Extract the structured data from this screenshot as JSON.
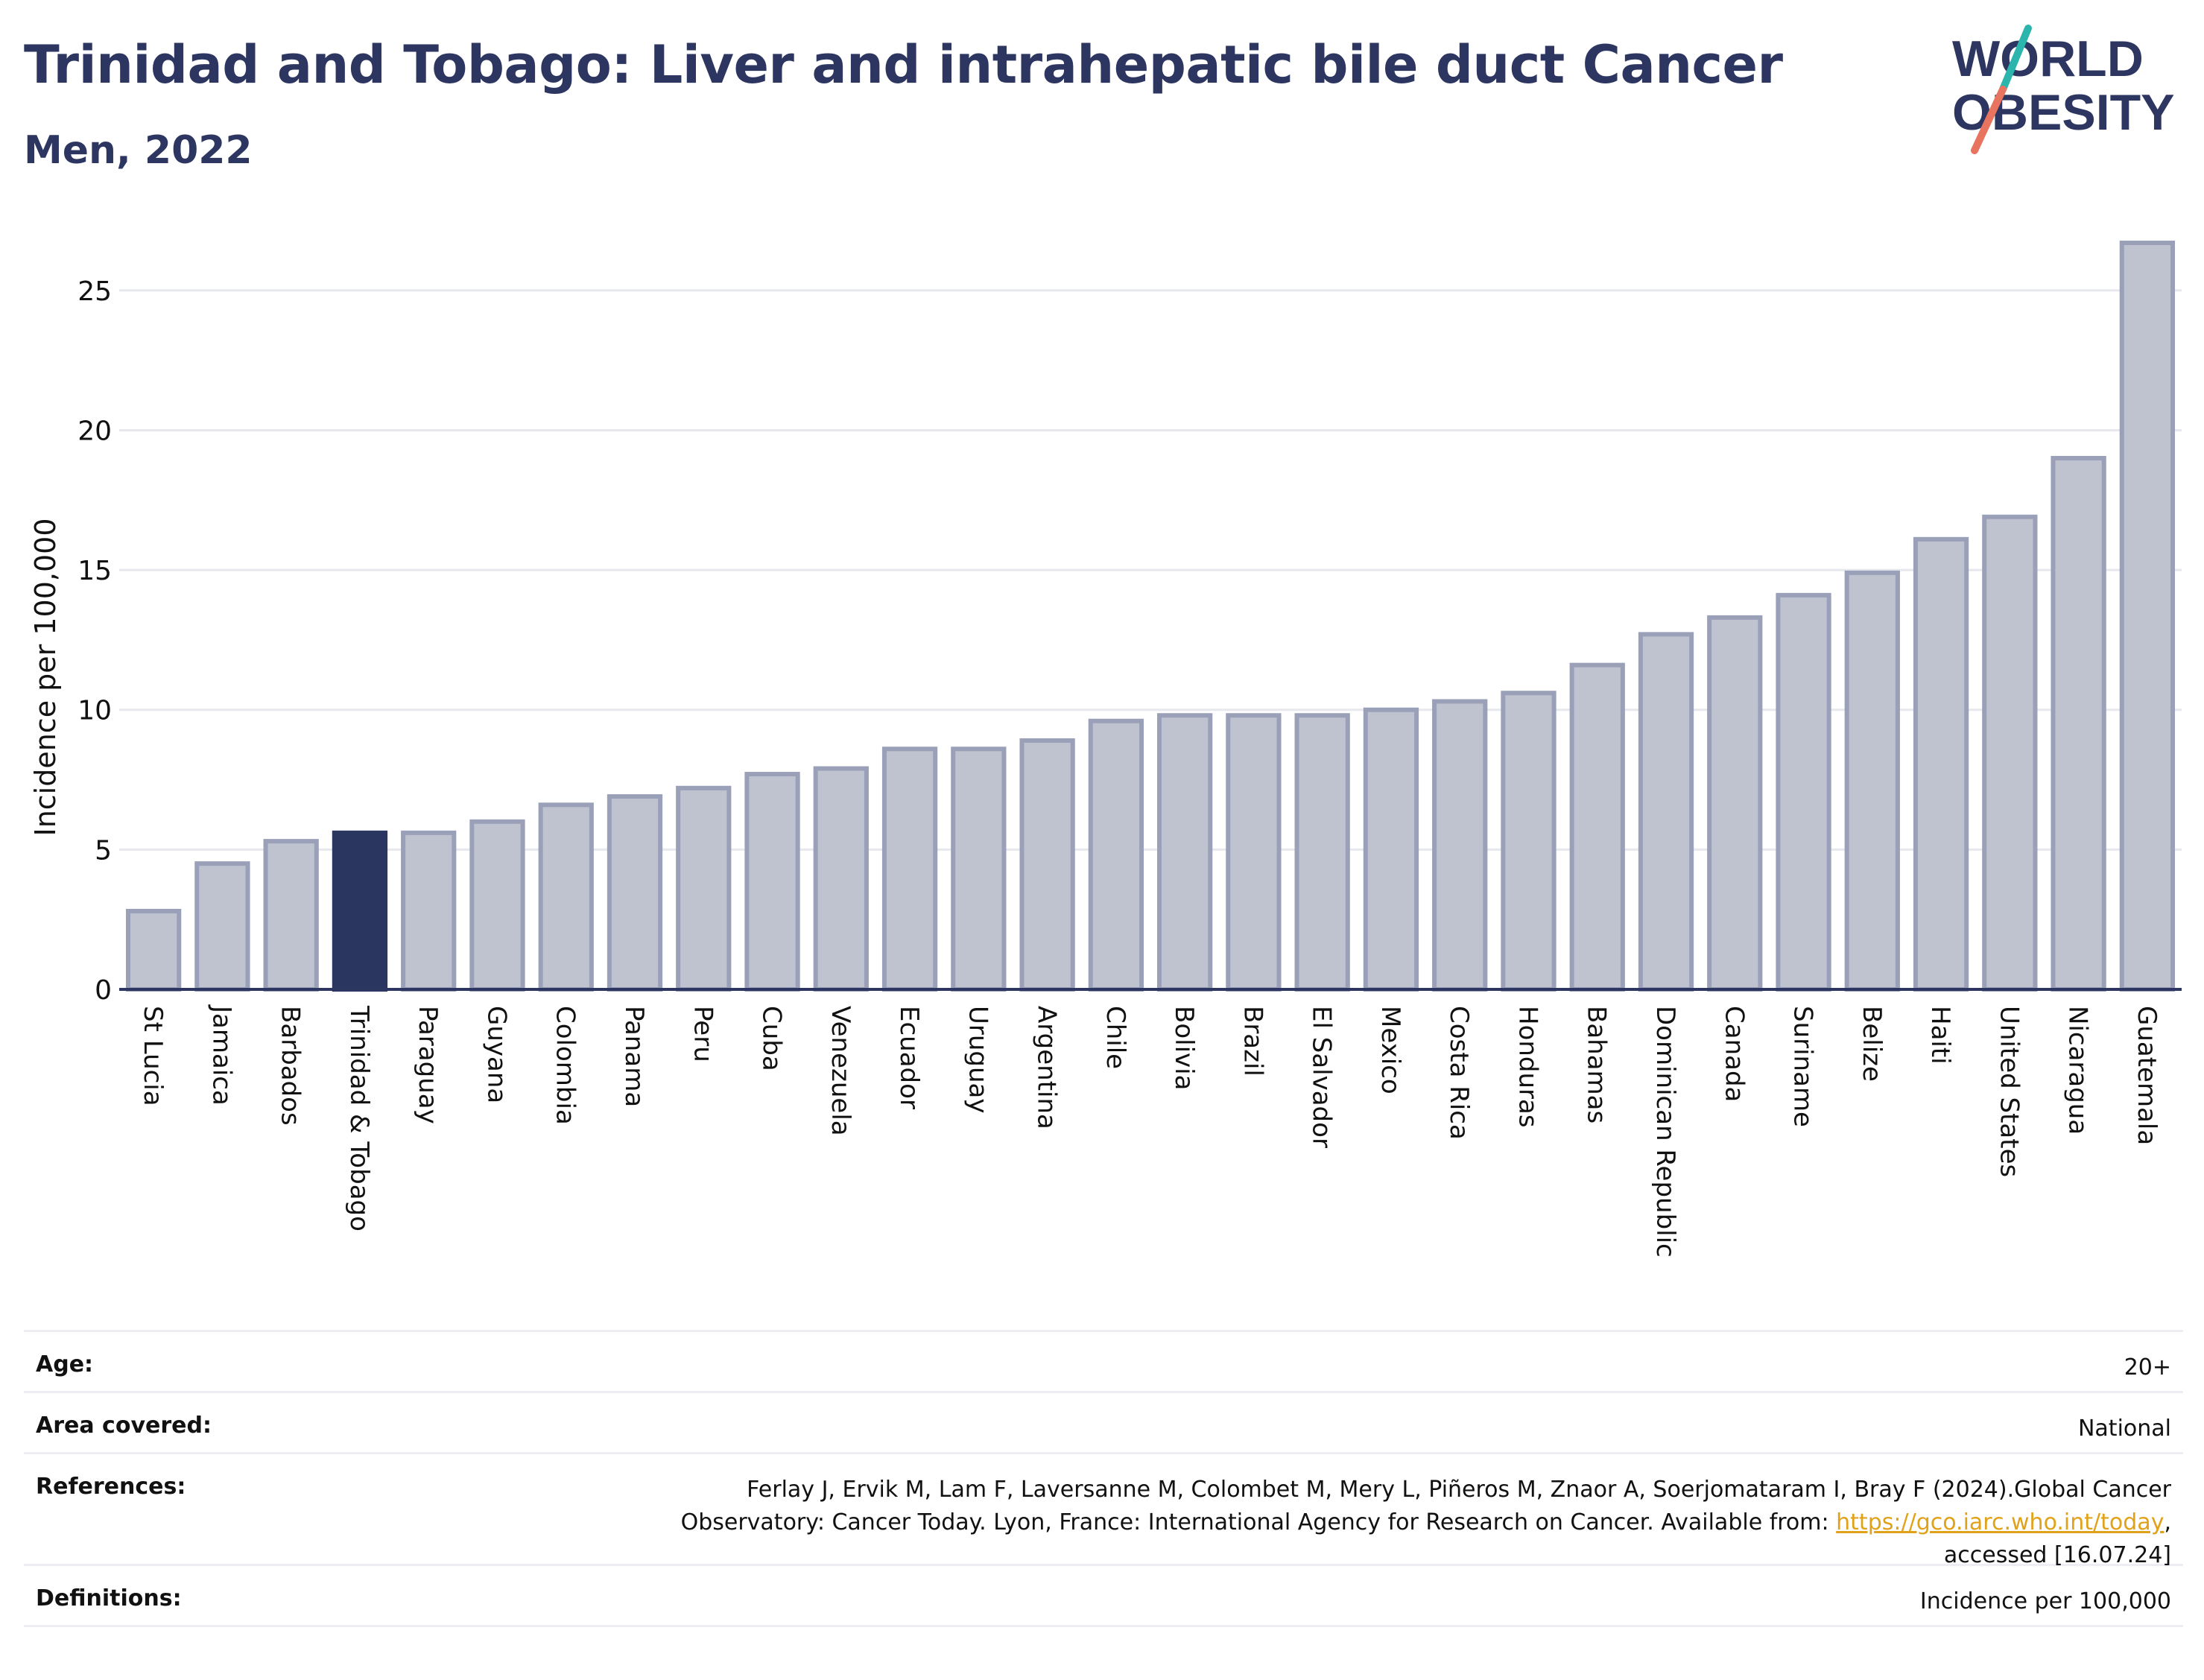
{
  "title": "Trinidad and Tobago: Liver and intrahepatic bile duct Cancer",
  "subtitle": "Men, 2022",
  "logo": {
    "line1": "WORLD",
    "line2": "OBESITY",
    "colors": {
      "text": "#2d3660",
      "slash_top": "#2bb5ad",
      "slash_bottom": "#e8735f"
    }
  },
  "colors": {
    "bar_default": "#bfc2cf",
    "bar_stroke": "#9aa0b8",
    "bar_highlight": "#2a3560",
    "grid": "#e6e8ee",
    "axis": "#2d3660"
  },
  "chart_data": {
    "type": "bar",
    "ylabel": "Incidence per 100,000",
    "xlabel": "",
    "ylim": [
      0,
      27
    ],
    "yticks": [
      0,
      5,
      10,
      15,
      20,
      25
    ],
    "grid": true,
    "highlight": "Trinidad & Tobago",
    "categories": [
      "St Lucia",
      "Jamaica",
      "Barbados",
      "Trinidad & Tobago",
      "Paraguay",
      "Guyana",
      "Colombia",
      "Panama",
      "Peru",
      "Cuba",
      "Venezuela",
      "Ecuador",
      "Uruguay",
      "Argentina",
      "Chile",
      "Bolivia",
      "Brazil",
      "El Salvador",
      "Mexico",
      "Costa Rica",
      "Honduras",
      "Bahamas",
      "Dominican Republic",
      "Canada",
      "Suriname",
      "Belize",
      "Haiti",
      "United States",
      "Nicaragua",
      "Guatemala"
    ],
    "values": [
      2.8,
      4.5,
      5.3,
      5.6,
      5.6,
      6.0,
      6.6,
      6.9,
      7.2,
      7.7,
      7.9,
      8.6,
      8.6,
      8.9,
      9.6,
      9.8,
      9.8,
      9.8,
      10.0,
      10.3,
      10.6,
      11.6,
      12.7,
      13.3,
      14.1,
      14.9,
      16.1,
      16.9,
      19.0,
      26.7
    ]
  },
  "info": {
    "age_label": "Age:",
    "age_value": "20+",
    "area_label": "Area covered:",
    "area_value": "National",
    "references_label": "References:",
    "references_text_1": "Ferlay J, Ervik M, Lam F, Laversanne M, Colombet M, Mery L, Piñeros M, Znaor A, Soerjomataram I, Bray F (2024).Global Cancer",
    "references_text_2": "Observatory: Cancer Today. Lyon, France: International Agency for Research on Cancer. Available from: ",
    "references_link": "https://gco.iarc.who.int/today",
    "references_text_3": ",",
    "references_text_4": "accessed [16.07.24]",
    "definitions_label": "Definitions:",
    "definitions_value": "Incidence per 100,000"
  }
}
